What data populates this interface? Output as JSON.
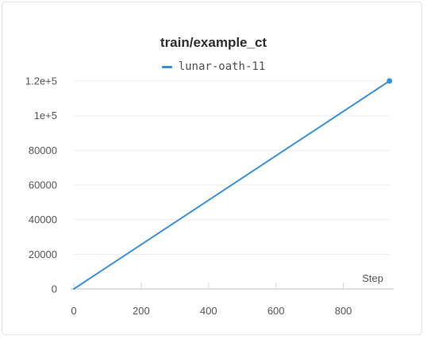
{
  "chart_data": {
    "type": "line",
    "title": "train/example_ct",
    "xlabel": "Step",
    "ylabel": "",
    "xlim": [
      0,
      940
    ],
    "ylim": [
      0,
      120000
    ],
    "x_ticks": [
      0,
      200,
      400,
      600,
      800
    ],
    "x_tick_labels": [
      "0",
      "200",
      "400",
      "600",
      "800"
    ],
    "y_ticks": [
      0,
      20000,
      40000,
      60000,
      80000,
      100000,
      120000
    ],
    "y_tick_labels": [
      "0",
      "20000",
      "40000",
      "60000",
      "80000",
      "1e+5",
      "1.2e+5"
    ],
    "grid": true,
    "legend_position": "top-center",
    "series": [
      {
        "name": "lunar-oath-11",
        "color": "#3a8fd9",
        "x": [
          0,
          937
        ],
        "y": [
          0,
          120000
        ]
      }
    ]
  }
}
